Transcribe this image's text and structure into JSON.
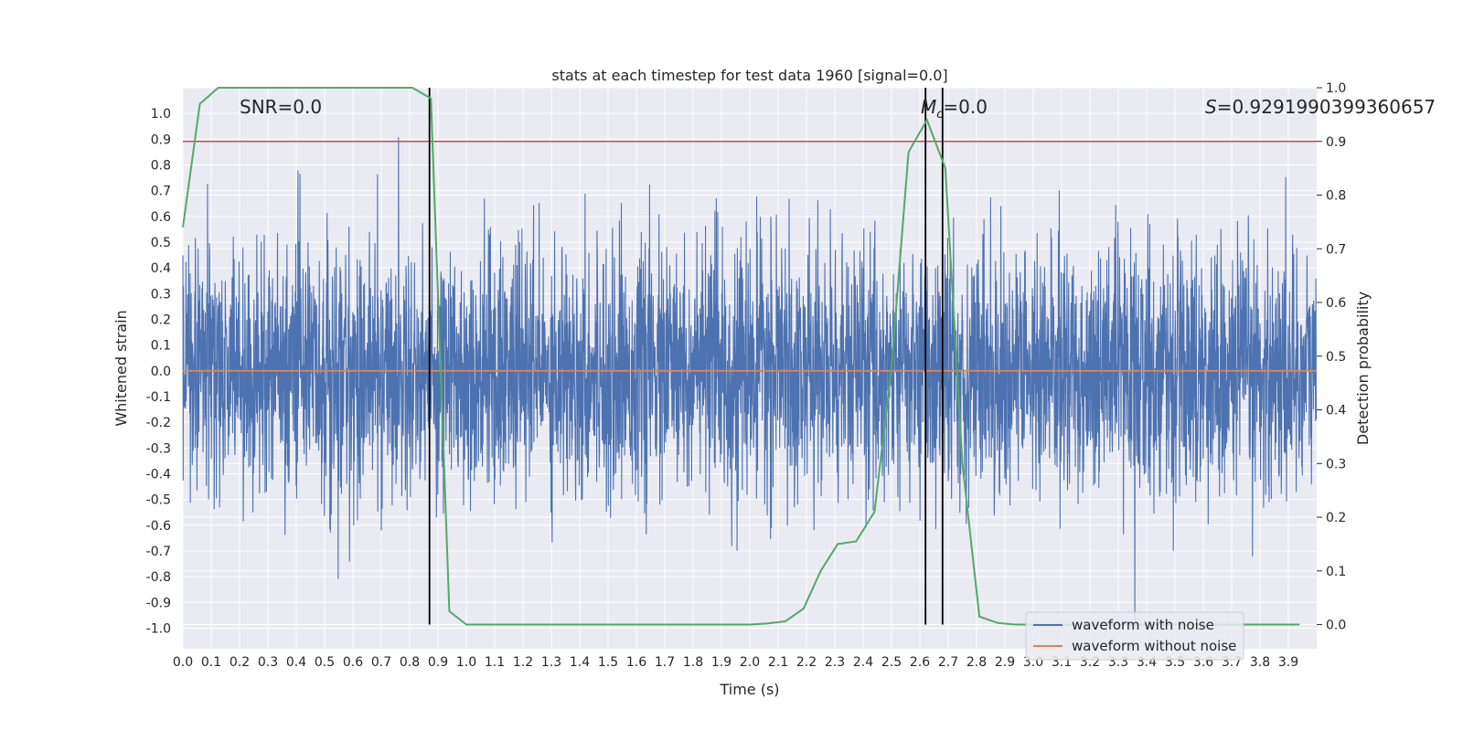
{
  "chart_data": {
    "type": "line",
    "title": "stats at each timestep for test data 1960 [signal=0.0]",
    "xlabel": "Time (s)",
    "ylabel": "Whitened strain",
    "ylabel_right": "Detection probability",
    "xlim": [
      0.0,
      4.0
    ],
    "ylim": [
      -1.08,
      1.1
    ],
    "ylim_right": [
      -0.045,
      1.0
    ],
    "xticks": [
      "0.0",
      "0.1",
      "0.2",
      "0.3",
      "0.4",
      "0.5",
      "0.6",
      "0.7",
      "0.8",
      "0.9",
      "1.0",
      "1.1",
      "1.2",
      "1.3",
      "1.4",
      "1.5",
      "1.6",
      "1.7",
      "1.8",
      "1.9",
      "2.0",
      "2.1",
      "2.2",
      "2.3",
      "2.4",
      "2.5",
      "2.6",
      "2.7",
      "2.8",
      "2.9",
      "3.0",
      "3.1",
      "3.2",
      "3.3",
      "3.4",
      "3.5",
      "3.6",
      "3.7",
      "3.8",
      "3.9"
    ],
    "yticks_left": [
      "1.0",
      "0.9",
      "0.8",
      "0.7",
      "0.6",
      "0.5",
      "0.4",
      "0.3",
      "0.2",
      "0.1",
      "0.0",
      "-0.1",
      "-0.2",
      "-0.3",
      "-0.4",
      "-0.5",
      "-0.6",
      "-0.7",
      "-0.8",
      "-0.9",
      "-1.0"
    ],
    "yticks_right": [
      "1.0",
      "0.9",
      "0.8",
      "0.7",
      "0.6",
      "0.5",
      "0.4",
      "0.3",
      "0.2",
      "0.1",
      "0.0"
    ],
    "annotations": {
      "snr": "SNR=0.0",
      "mc_symbol": "M",
      "mc_subscript": "c",
      "mc_value": "=0.0",
      "s_symbol": "S",
      "s_value": "=0.9291990399360657"
    },
    "threshold_right": 0.9,
    "vertical_lines_x": [
      0.87,
      2.62,
      2.68
    ],
    "series": [
      {
        "name": "waveform with noise",
        "color": "#4c72b0",
        "kind": "noise",
        "samples": 4096,
        "amplitude_range": [
          -1.0,
          1.0
        ],
        "seed": 1960
      },
      {
        "name": "waveform without noise",
        "color": "#dd8452",
        "x": [
          0.0,
          4.0
        ],
        "y": [
          0.0,
          0.0
        ]
      },
      {
        "name": "detection probability",
        "color": "#55a868",
        "axis": "right",
        "x": [
          0.0,
          0.06,
          0.125,
          0.19,
          0.25,
          0.31,
          0.375,
          0.44,
          0.5,
          0.56,
          0.625,
          0.69,
          0.75,
          0.81,
          0.875,
          0.94,
          1.0,
          1.06,
          1.125,
          1.19,
          1.25,
          1.31,
          1.375,
          1.44,
          1.5,
          1.56,
          1.625,
          1.69,
          1.75,
          1.81,
          1.875,
          1.94,
          2.0,
          2.06,
          2.125,
          2.19,
          2.25,
          2.31,
          2.375,
          2.44,
          2.5,
          2.56,
          2.625,
          2.69,
          2.75,
          2.81,
          2.875,
          2.94,
          3.0,
          3.06,
          3.125,
          3.19,
          3.25,
          3.31,
          3.375,
          3.44,
          3.5,
          3.56,
          3.625,
          3.69,
          3.75,
          3.81,
          3.875,
          3.94
        ],
        "y": [
          0.74,
          0.97,
          1.0,
          1.0,
          1.0,
          1.0,
          1.0,
          1.0,
          1.0,
          1.0,
          1.0,
          1.0,
          1.0,
          1.0,
          0.98,
          0.025,
          0.0,
          0.0,
          0.0,
          0.0,
          0.0,
          0.0,
          0.0,
          0.0,
          0.0,
          0.0,
          0.0,
          0.0,
          0.0,
          0.0,
          0.0,
          0.0,
          0.0,
          0.002,
          0.006,
          0.03,
          0.1,
          0.15,
          0.155,
          0.21,
          0.48,
          0.88,
          0.94,
          0.85,
          0.3,
          0.015,
          0.003,
          0.0,
          0.0,
          0.0,
          0.0,
          0.0,
          0.0,
          0.0,
          0.0,
          0.0,
          0.0,
          0.0,
          0.0,
          0.0,
          0.0,
          0.0,
          0.0,
          0.0
        ]
      }
    ],
    "legend": {
      "location": "lower-right",
      "entries": [
        "waveform with noise",
        "waveform without noise"
      ]
    },
    "colors": {
      "background": "#eaeaf2",
      "grid": "#ffffff",
      "threshold": "#c44e52",
      "vline": "#000000"
    }
  }
}
